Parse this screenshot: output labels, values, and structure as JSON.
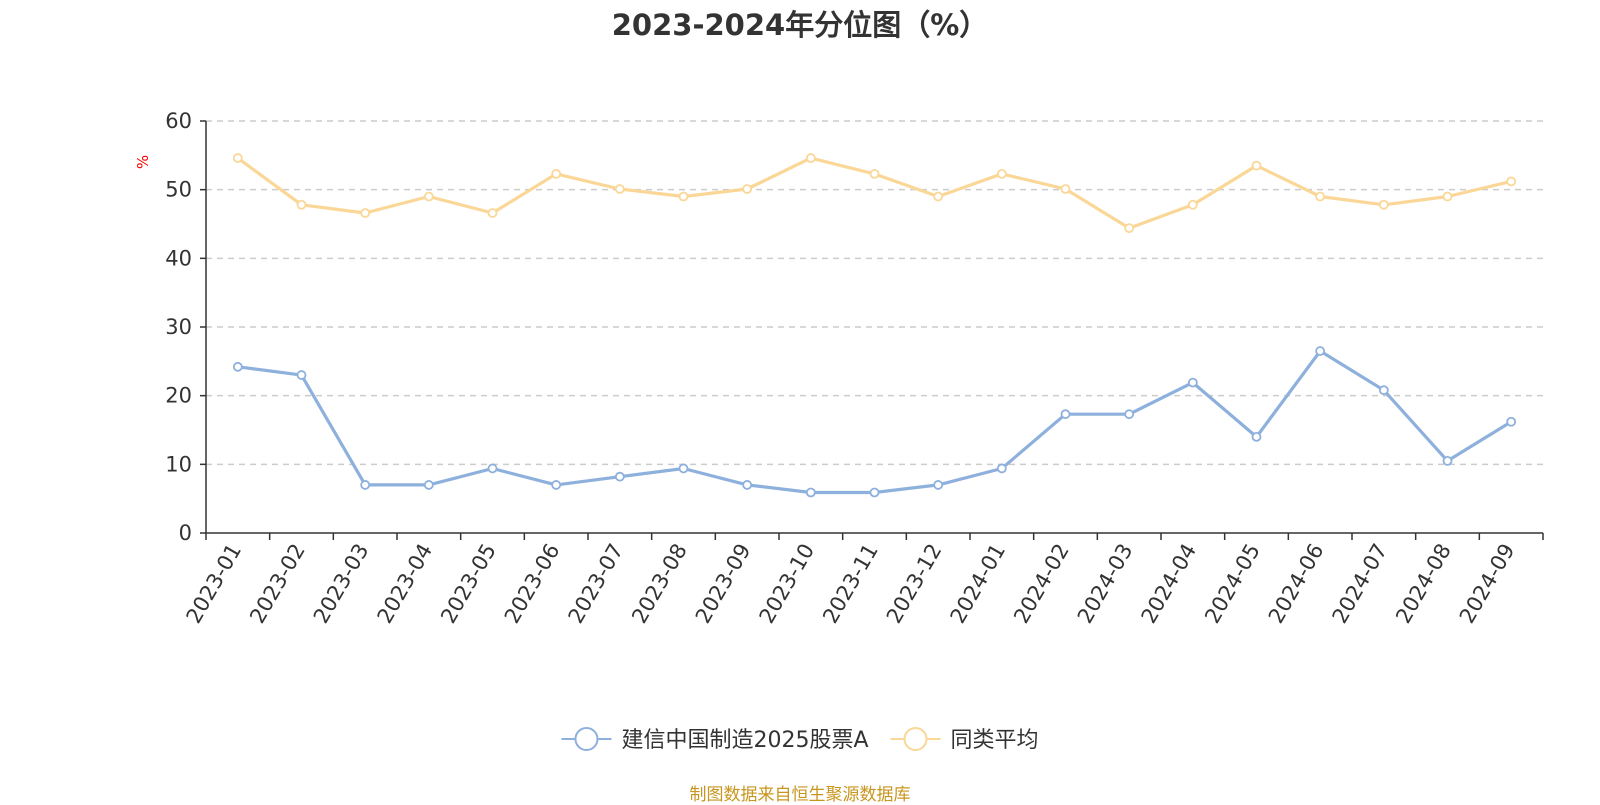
{
  "chart_data": {
    "type": "line",
    "title": "2023-2024年分位图（%）",
    "ylabel": "%",
    "xlabel": "",
    "ylim": [
      0,
      60
    ],
    "yticks": [
      0,
      10,
      20,
      30,
      40,
      50,
      60
    ],
    "grid": true,
    "legend_position": "bottom",
    "categories": [
      "2023-01",
      "2023-02",
      "2023-03",
      "2023-04",
      "2023-05",
      "2023-06",
      "2023-07",
      "2023-08",
      "2023-09",
      "2023-10",
      "2023-11",
      "2023-12",
      "2024-01",
      "2024-02",
      "2024-03",
      "2024-04",
      "2024-05",
      "2024-06",
      "2024-07",
      "2024-08",
      "2024-09"
    ],
    "series": [
      {
        "name": "建信中国制造2025股票A",
        "color": "#8eb0dc",
        "values": [
          24.2,
          23.0,
          7.0,
          7.0,
          9.4,
          7.0,
          8.2,
          9.4,
          7.0,
          5.9,
          5.9,
          7.0,
          9.4,
          17.3,
          17.3,
          21.9,
          14.0,
          26.5,
          20.8,
          10.5,
          16.2
        ]
      },
      {
        "name": "同类平均",
        "color": "#fad797",
        "values": [
          54.6,
          47.8,
          46.6,
          49.0,
          46.6,
          52.3,
          50.1,
          49.0,
          50.1,
          54.6,
          52.3,
          49.0,
          52.3,
          50.1,
          44.4,
          47.8,
          53.5,
          49.0,
          47.8,
          49.0,
          51.2
        ]
      }
    ]
  },
  "source": "制图数据来自恒生聚源数据库"
}
